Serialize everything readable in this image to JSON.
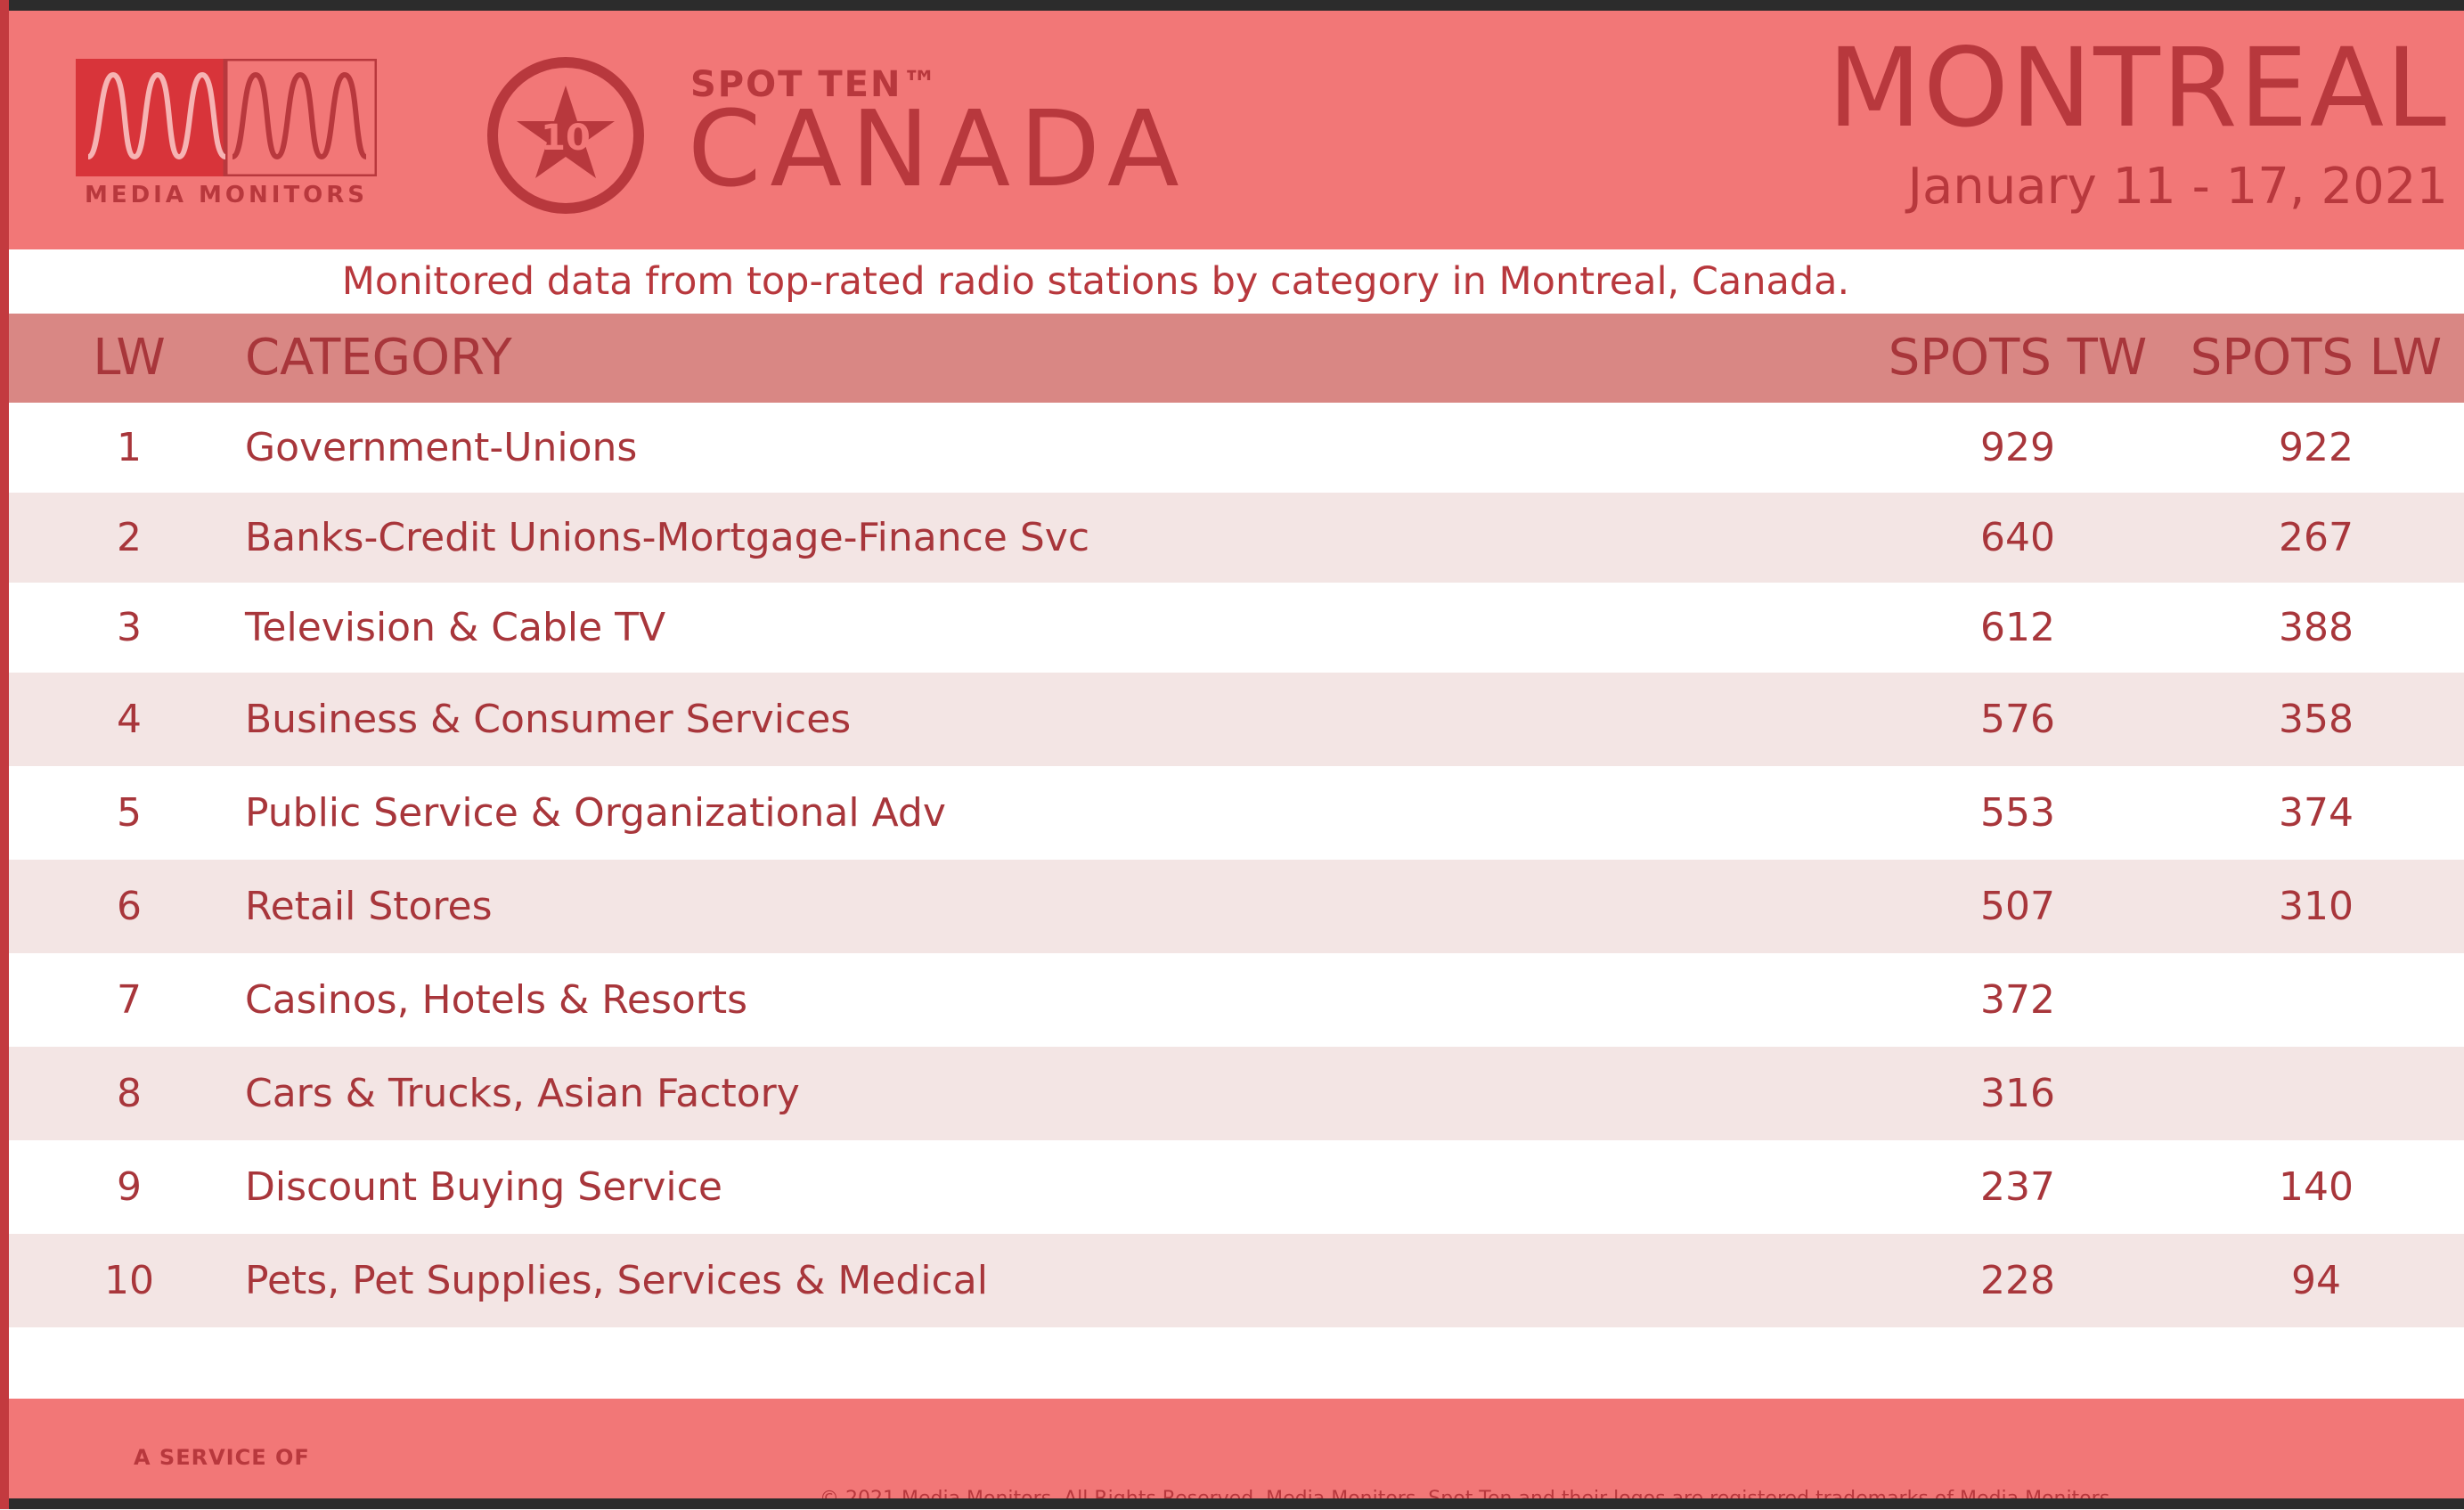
{
  "header": {
    "brand_label": "MEDIA MONITORS",
    "badge_number": "10",
    "spot_ten": "SPOT TEN™",
    "country": "CANADA",
    "city": "MONTREAL",
    "dates": "January 11 - 17, 2021"
  },
  "subtitle": "Monitored data from top-rated radio stations by category in Montreal, Canada.",
  "table": {
    "headers": {
      "lw": "LW",
      "category": "CATEGORY",
      "spots_tw": "SPOTS TW",
      "spots_lw": "SPOTS LW"
    },
    "rows": [
      {
        "lw": "1",
        "category": "Government-Unions",
        "spots_tw": "929",
        "spots_lw": "922"
      },
      {
        "lw": "2",
        "category": "Banks-Credit Unions-Mortgage-Finance Svc",
        "spots_tw": "640",
        "spots_lw": "267"
      },
      {
        "lw": "3",
        "category": "Television & Cable TV",
        "spots_tw": "612",
        "spots_lw": "388"
      },
      {
        "lw": "4",
        "category": "Business & Consumer Services",
        "spots_tw": "576",
        "spots_lw": "358"
      },
      {
        "lw": "5",
        "category": "Public Service & Organizational Adv",
        "spots_tw": "553",
        "spots_lw": "374"
      },
      {
        "lw": "6",
        "category": "Retail Stores",
        "spots_tw": "507",
        "spots_lw": "310"
      },
      {
        "lw": "7",
        "category": "Casinos, Hotels & Resorts",
        "spots_tw": "372",
        "spots_lw": ""
      },
      {
        "lw": "8",
        "category": "Cars & Trucks, Asian Factory",
        "spots_tw": "316",
        "spots_lw": ""
      },
      {
        "lw": "9",
        "category": "Discount Buying Service",
        "spots_tw": "237",
        "spots_lw": "140"
      },
      {
        "lw": "10",
        "category": "Pets, Pet Supplies, Services & Medical",
        "spots_tw": "228",
        "spots_lw": "94"
      }
    ]
  },
  "footer": {
    "service_label": "A SERVICE OF",
    "copyright": "© 2021 Media Monitors. All Rights Reserved. Media Monitors, Spot Ten and their logos are registered trademarks of Media Monitors."
  },
  "colors": {
    "header_bg": "#f27777",
    "accent": "#b8383d",
    "table_header_bg": "#d98784",
    "stripe": "#f3e5e4"
  }
}
